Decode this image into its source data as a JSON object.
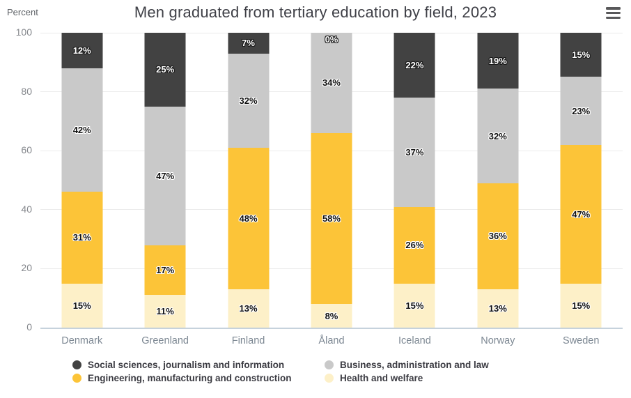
{
  "header": {
    "title": "Men graduated from tertiary education by field, 2023",
    "axis_unit": "Percent"
  },
  "colors": {
    "gridline": "#ebebeb",
    "baseline": "#c6d2dc",
    "axis_text": "#85888d",
    "category_text": "#7d8893",
    "title_text": "#3e3f46",
    "legend_text": "#3b3b42",
    "menu_icon": "#58585a"
  },
  "chart_data": {
    "type": "bar",
    "stacked": true,
    "title": "Men graduated from tertiary education by field, 2023",
    "ylabel": "Percent",
    "ylim": [
      0,
      100
    ],
    "yticks": [
      100,
      80,
      60,
      40,
      20,
      0
    ],
    "grid": true,
    "legend_position": "bottom",
    "value_suffix": "%",
    "categories": [
      "Denmark",
      "Greenland",
      "Finland",
      "Åland",
      "Iceland",
      "Norway",
      "Sweden"
    ],
    "series": [
      {
        "name": "Social sciences, journalism and information",
        "color": "#424242",
        "value_label_color": "#ffffff",
        "values": [
          12,
          25,
          7,
          0,
          22,
          19,
          15
        ]
      },
      {
        "name": "Business, administration and law",
        "color": "#c9c9c9",
        "value_label_color": "#111111",
        "values": [
          42,
          47,
          32,
          34,
          37,
          32,
          23
        ]
      },
      {
        "name": "Engineering, manufacturing and construction",
        "color": "#fcc438",
        "value_label_color": "#111111",
        "values": [
          31,
          17,
          48,
          58,
          26,
          36,
          47
        ]
      },
      {
        "name": "Health and welfare",
        "color": "#fdf0c8",
        "value_label_color": "#111111",
        "values": [
          15,
          11,
          13,
          8,
          15,
          13,
          15
        ]
      }
    ]
  }
}
